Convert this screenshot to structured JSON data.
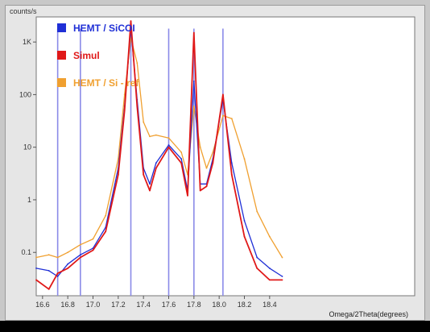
{
  "chart_data": {
    "type": "line",
    "y_unit_label": "counts/s",
    "xlabel": "Omega/2Theta(degrees)",
    "ylabel": "counts/s",
    "yscale": "log",
    "xlim": [
      16.55,
      19.55
    ],
    "ylim": [
      0.015,
      3000
    ],
    "x_ticks": [
      16.6,
      16.8,
      17.0,
      17.2,
      17.4,
      17.6,
      17.8,
      18.0,
      18.2,
      18.4
    ],
    "x_tick_labels": [
      "16.6",
      "16.8",
      "17.0",
      "17.2",
      "17.4",
      "17.6",
      "17.8",
      "18.0",
      "18.2",
      "18.4"
    ],
    "y_ticks": [
      0.1,
      1,
      10,
      100,
      1000
    ],
    "y_tick_labels": [
      "0.1",
      "1",
      "10",
      "100",
      "1K"
    ],
    "grid": false,
    "legend_position": "top-left",
    "series": [
      {
        "name": "HEMT / SiCOI",
        "color": "#1f2fd6",
        "points": [
          [
            16.55,
            0.05
          ],
          [
            16.65,
            0.045
          ],
          [
            16.72,
            0.035
          ],
          [
            16.8,
            0.06
          ],
          [
            16.9,
            0.09
          ],
          [
            17.0,
            0.12
          ],
          [
            17.1,
            0.3
          ],
          [
            17.2,
            4
          ],
          [
            17.25,
            60
          ],
          [
            17.3,
            1800
          ],
          [
            17.35,
            80
          ],
          [
            17.4,
            4
          ],
          [
            17.45,
            2
          ],
          [
            17.5,
            5
          ],
          [
            17.6,
            11
          ],
          [
            17.7,
            6
          ],
          [
            17.75,
            1.5
          ],
          [
            17.8,
            180
          ],
          [
            17.85,
            2
          ],
          [
            17.9,
            2
          ],
          [
            17.95,
            6
          ],
          [
            18.03,
            80
          ],
          [
            18.1,
            5
          ],
          [
            18.2,
            0.4
          ],
          [
            18.3,
            0.08
          ],
          [
            18.4,
            0.05
          ],
          [
            18.5,
            0.035
          ]
        ]
      },
      {
        "name": "Simul",
        "color": "#e01818",
        "points": [
          [
            16.55,
            0.03
          ],
          [
            16.65,
            0.02
          ],
          [
            16.72,
            0.04
          ],
          [
            16.8,
            0.05
          ],
          [
            16.9,
            0.08
          ],
          [
            17.0,
            0.11
          ],
          [
            17.1,
            0.25
          ],
          [
            17.2,
            3
          ],
          [
            17.25,
            50
          ],
          [
            17.3,
            2500
          ],
          [
            17.35,
            60
          ],
          [
            17.4,
            3
          ],
          [
            17.45,
            1.5
          ],
          [
            17.5,
            4
          ],
          [
            17.6,
            10
          ],
          [
            17.7,
            5
          ],
          [
            17.75,
            1.2
          ],
          [
            17.8,
            1500
          ],
          [
            17.85,
            1.5
          ],
          [
            17.9,
            1.8
          ],
          [
            17.95,
            5
          ],
          [
            18.03,
            100
          ],
          [
            18.1,
            3
          ],
          [
            18.2,
            0.2
          ],
          [
            18.3,
            0.05
          ],
          [
            18.4,
            0.03
          ],
          [
            18.5,
            0.03
          ]
        ]
      },
      {
        "name": "HEMT / Si - ref",
        "color": "#f0a030",
        "points": [
          [
            16.55,
            0.08
          ],
          [
            16.65,
            0.09
          ],
          [
            16.72,
            0.08
          ],
          [
            16.8,
            0.1
          ],
          [
            16.9,
            0.14
          ],
          [
            17.0,
            0.18
          ],
          [
            17.1,
            0.5
          ],
          [
            17.2,
            6
          ],
          [
            17.25,
            100
          ],
          [
            17.3,
            1200
          ],
          [
            17.35,
            400
          ],
          [
            17.4,
            30
          ],
          [
            17.45,
            16
          ],
          [
            17.5,
            17
          ],
          [
            17.6,
            15
          ],
          [
            17.7,
            8
          ],
          [
            17.75,
            3
          ],
          [
            17.8,
            60
          ],
          [
            17.85,
            10
          ],
          [
            17.9,
            4
          ],
          [
            17.95,
            8
          ],
          [
            18.03,
            40
          ],
          [
            18.1,
            35
          ],
          [
            18.2,
            6
          ],
          [
            18.3,
            0.6
          ],
          [
            18.4,
            0.2
          ],
          [
            18.5,
            0.08
          ]
        ]
      }
    ],
    "reference_lines": [
      16.72,
      16.9,
      17.3,
      17.6,
      17.8,
      18.03
    ]
  }
}
